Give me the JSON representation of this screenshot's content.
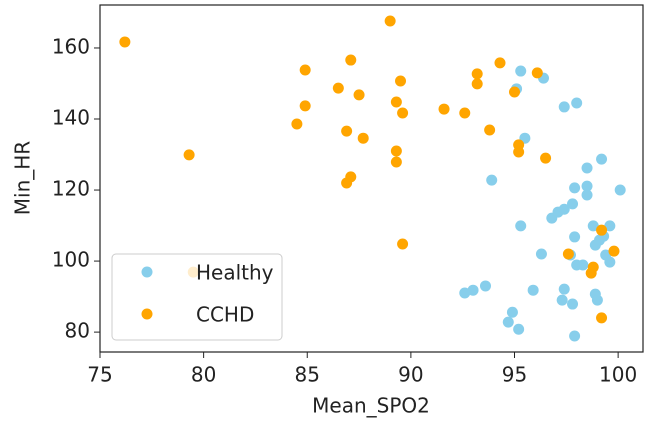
{
  "chart_data": {
    "type": "scatter",
    "x_label": "Mean_SPO2",
    "y_label": "Min_HR",
    "xlim": [
      75,
      101.2
    ],
    "ylim": [
      74.4,
      172.1
    ],
    "xticks": [
      75,
      80,
      85,
      90,
      95,
      100
    ],
    "yticks": [
      80,
      100,
      120,
      140,
      160
    ],
    "grid": false,
    "legend_position": "lower left",
    "series": [
      {
        "name": "Healthy",
        "color": "#87ceeb",
        "x": [
          93.9,
          92.6,
          93.0,
          93.6,
          94.7,
          94.9,
          95.2,
          95.3,
          95.3,
          95.1,
          95.5,
          95.9,
          96.4,
          96.3,
          96.8,
          97.1,
          97.4,
          97.8,
          97.9,
          97.4,
          98.0,
          98.5,
          98.5,
          98.5,
          99.2,
          97.9,
          97.7,
          97.4,
          97.3,
          97.8,
          97.9,
          98.0,
          98.3,
          98.8,
          98.9,
          99.1,
          99.3,
          99.6,
          99.4,
          99.6,
          100.1,
          98.9,
          99.0
        ],
        "y": [
          122.8,
          91,
          91.8,
          93,
          82.8,
          85.6,
          80.8,
          109.9,
          153.5,
          148.5,
          134.6,
          91.8,
          151.5,
          102,
          112.1,
          113.8,
          114.6,
          116.1,
          120.6,
          143.4,
          144.5,
          121.1,
          118.6,
          126.2,
          128.7,
          106.8,
          101.7,
          92.1,
          89,
          87.9,
          78.9,
          98.9,
          98.9,
          109.9,
          104.5,
          105.9,
          107,
          109.9,
          101.7,
          99.7,
          120,
          90.7,
          89
        ]
      },
      {
        "name": "CCHD",
        "color": "#ffa500",
        "x": [
          76.2,
          79.3,
          79.5,
          84.5,
          84.9,
          84.9,
          86.5,
          87.1,
          86.9,
          87.1,
          86.9,
          87.5,
          87.7,
          89.0,
          89.3,
          89.5,
          89.6,
          89.3,
          89.3,
          89.6,
          91.6,
          92.6,
          93.2,
          93.2,
          93.8,
          94.3,
          95.0,
          95.2,
          95.2,
          96.1,
          96.5,
          97.6,
          98.7,
          98.8,
          99.2,
          99.2,
          99.8
        ],
        "y": [
          161.7,
          129.9,
          96.9,
          138.6,
          143.7,
          153.8,
          148.7,
          156.6,
          136.6,
          123.7,
          122,
          146.8,
          134.6,
          167.6,
          144.8,
          150.7,
          141.7,
          131,
          127.9,
          104.8,
          142.8,
          141.7,
          152.7,
          149.9,
          136.9,
          155.8,
          147.6,
          132.7,
          130.7,
          153,
          129,
          102,
          96.6,
          98.3,
          108.7,
          84,
          102.8
        ]
      }
    ]
  }
}
